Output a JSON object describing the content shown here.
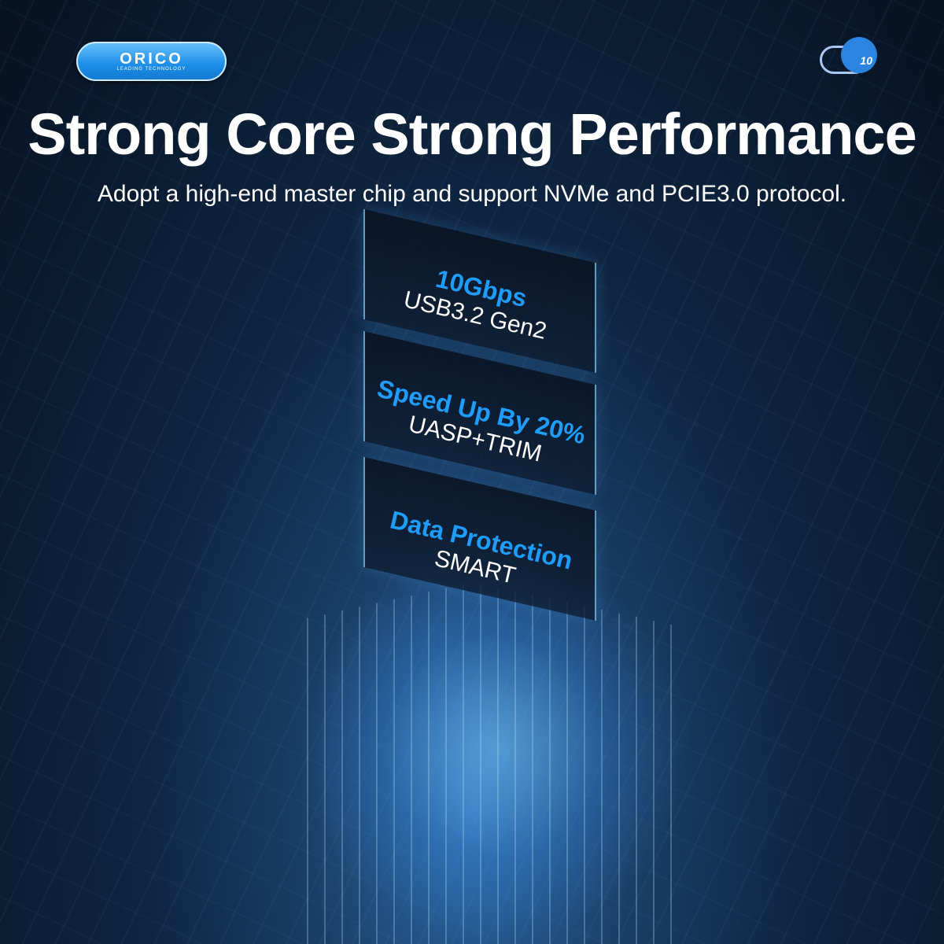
{
  "brand": {
    "name": "ORICO",
    "tagline": "LEADING TECHNOLOGY",
    "color": "#1b8de6"
  },
  "badge": {
    "icon": "speedometer-icon",
    "value": "10"
  },
  "headline": "Strong Core Strong Performance",
  "subtitle": "Adopt a high-end master chip and support NVMe and PCIE3.0 protocol.",
  "features": [
    {
      "title": "10Gbps",
      "detail": "USB3.2 Gen2"
    },
    {
      "title": "Speed Up By 20%",
      "detail": "UASP+TRIM"
    },
    {
      "title": "Data Protection",
      "detail": "SMART"
    }
  ],
  "accent": "#1e9cff"
}
